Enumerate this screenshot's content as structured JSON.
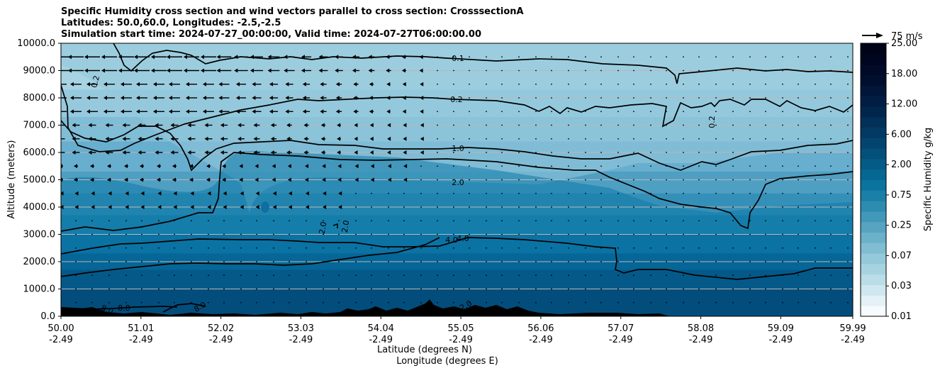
{
  "chart_data": {
    "type": "contourf",
    "title_lines": [
      "Specific Humidity cross section and wind vectors parallel to cross section: CrosssectionA",
      "Latitudes: 50.0,60.0, Longitudes: -2.5,-2.5",
      "Simulation start time: 2024-07-27_00:00:00, Valid time: 2024-07-27T06:00:00.00"
    ],
    "xlabel_line1": "Latitude (degrees N)",
    "xlabel_line2": "Longitude (degrees E)",
    "ylabel": "Altitude (meters)",
    "x_ticks": [
      {
        "lat": "50.00",
        "lon": "-2.49"
      },
      {
        "lat": "51.01",
        "lon": "-2.49"
      },
      {
        "lat": "52.02",
        "lon": "-2.49"
      },
      {
        "lat": "53.03",
        "lon": "-2.49"
      },
      {
        "lat": "54.04",
        "lon": "-2.49"
      },
      {
        "lat": "55.05",
        "lon": "-2.49"
      },
      {
        "lat": "56.06",
        "lon": "-2.49"
      },
      {
        "lat": "57.07",
        "lon": "-2.49"
      },
      {
        "lat": "58.08",
        "lon": "-2.49"
      },
      {
        "lat": "59.09",
        "lon": "-2.49"
      },
      {
        "lat": "59.99",
        "lon": "-2.49"
      }
    ],
    "y_ticks": [
      "0.0",
      "1000.0",
      "2000.0",
      "3000.0",
      "4000.0",
      "5000.0",
      "6000.0",
      "7000.0",
      "8000.0",
      "9000.0",
      "10000.0"
    ],
    "ylim": [
      0,
      10000
    ],
    "grid": "horizontal",
    "colorbar": {
      "label": "Specific Humidity g/kg",
      "ticks": [
        "0.01",
        "0.03",
        "0.07",
        "0.25",
        "0.75",
        "2.00",
        "6.00",
        "12.00",
        "18.00",
        "25.00"
      ]
    },
    "quiver_key": {
      "label": "75 m/s"
    },
    "contour_levels": [
      {
        "label": "0.1",
        "altitude_m": 9000
      },
      {
        "label": "0.2",
        "altitude_m": 7900
      },
      {
        "label": "1.0",
        "altitude_m": 6200
      },
      {
        "label": "2.0",
        "altitude_m": 4900
      },
      {
        "label": "4.0",
        "altitude_m": 2800
      },
      {
        "label": "8.0",
        "altitude_m": 300
      }
    ],
    "extra_contour_labels": [
      "0.2",
      "0.2",
      "2.0",
      "2.0",
      "4.0",
      "8.0",
      "8.0",
      "2.0"
    ]
  }
}
